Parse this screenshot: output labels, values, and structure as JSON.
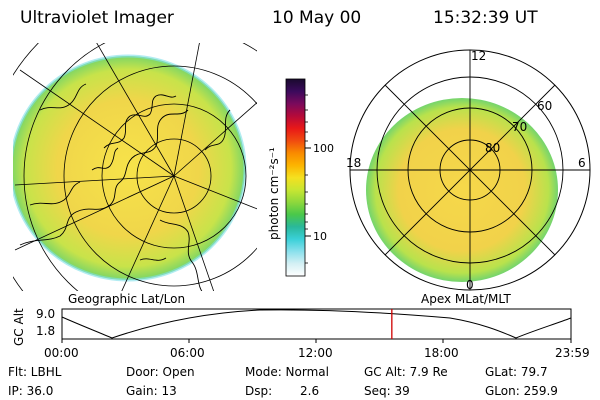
{
  "header": {
    "instrument": "Ultraviolet Imager",
    "date": "10 May 00",
    "time": "15:32:39 UT"
  },
  "left_panel": {
    "caption": "Geographic Lat/Lon"
  },
  "right_panel": {
    "caption": "Apex MLat/MLT",
    "mlt_labels": [
      "12",
      "18",
      "6",
      "0"
    ],
    "mlat_labels": [
      "60",
      "70",
      "80"
    ]
  },
  "colorbar": {
    "unit_label": "photon cm⁻²s⁻¹",
    "tick_labels": [
      "100",
      "10"
    ],
    "colors": [
      "#1a0a2e",
      "#3b0a5c",
      "#7a0a5c",
      "#b40a3a",
      "#e81818",
      "#f04a10",
      "#f98a00",
      "#fcb400",
      "#f5e020",
      "#c8e632",
      "#8fd83c",
      "#4ac84a",
      "#2ab89a",
      "#3ad0d8",
      "#8ae0ec",
      "#d4f0f4",
      "#ffffff"
    ]
  },
  "altitude_plot": {
    "axis_label": "GC Alt",
    "y_ticks": [
      "9.0",
      "1.8"
    ],
    "x_ticks": [
      "00:00",
      "06:00",
      "12:00",
      "18:00",
      "23:59"
    ],
    "current_time_fraction": 0.648,
    "marker_color": "#d00000"
  },
  "status": {
    "flt": "Flt: LBHL",
    "ip": "IP: 36.0",
    "door": "Door: Open",
    "gain": "Gain: 13",
    "mode": "Mode: Normal",
    "dsp_label": "Dsp:",
    "dsp_value": "2.6",
    "gc_alt": "GC Alt: 7.9 Re",
    "seq": "Seq: 39",
    "glat": "GLat: 79.7",
    "glon": "GLon: 259.9"
  }
}
